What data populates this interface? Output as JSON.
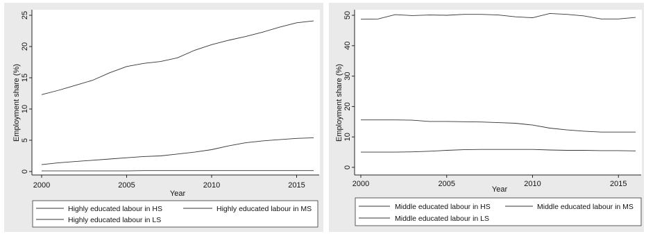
{
  "chart_data": [
    {
      "type": "line",
      "xlabel": "Year",
      "ylabel": "Employment share (%)",
      "xlim": [
        2000,
        2016
      ],
      "ylim": [
        0,
        26
      ],
      "xticks": [
        2000,
        2005,
        2010,
        2015
      ],
      "yticks": [
        0,
        5,
        10,
        15,
        20,
        25
      ],
      "grid": false,
      "legend_position": "bottom",
      "x": [
        2000,
        2001,
        2002,
        2003,
        2004,
        2005,
        2006,
        2007,
        2008,
        2009,
        2010,
        2011,
        2012,
        2013,
        2014,
        2015,
        2016
      ],
      "series": [
        {
          "name": "Highly educated labour in HS",
          "values": [
            12.3,
            13.0,
            13.8,
            14.6,
            15.8,
            16.8,
            17.3,
            17.6,
            18.2,
            19.4,
            20.3,
            21.0,
            21.6,
            22.3,
            23.1,
            23.8,
            24.1
          ]
        },
        {
          "name": "Highly educated labour  in MS",
          "values": [
            1.1,
            1.4,
            1.6,
            1.8,
            2.0,
            2.2,
            2.4,
            2.5,
            2.8,
            3.1,
            3.5,
            4.1,
            4.6,
            4.9,
            5.1,
            5.3,
            5.4
          ]
        },
        {
          "name": "Highly educated labour  in LS",
          "values": [
            0.1,
            0.1,
            0.1,
            0.1,
            0.1,
            0.1,
            0.15,
            0.15,
            0.15,
            0.15,
            0.15,
            0.15,
            0.15,
            0.15,
            0.15,
            0.15,
            0.15
          ]
        }
      ]
    },
    {
      "type": "line",
      "xlabel": "Year",
      "ylabel": "Employment share (%)",
      "xlim": [
        2000,
        2016
      ],
      "ylim": [
        0,
        52
      ],
      "xticks": [
        2000,
        2005,
        2010,
        2015
      ],
      "yticks": [
        0,
        10,
        20,
        30,
        40,
        50
      ],
      "grid": false,
      "legend_position": "bottom",
      "x": [
        2000,
        2001,
        2002,
        2003,
        2004,
        2005,
        2006,
        2007,
        2008,
        2009,
        2010,
        2011,
        2012,
        2013,
        2014,
        2015,
        2016
      ],
      "series": [
        {
          "name": "Middle educated labour in HS",
          "values": [
            15.6,
            15.6,
            15.6,
            15.5,
            15.1,
            15.1,
            15.0,
            14.9,
            14.7,
            14.5,
            13.9,
            12.9,
            12.3,
            11.9,
            11.6,
            11.6,
            11.6
          ]
        },
        {
          "name": "Middle educated labour in MS",
          "values": [
            48.7,
            48.8,
            50.2,
            49.9,
            50.1,
            50.0,
            50.3,
            50.3,
            50.1,
            49.5,
            49.2,
            50.6,
            50.3,
            49.8,
            48.8,
            48.8,
            49.3
          ]
        },
        {
          "name": "Middle educated labour in LS",
          "values": [
            5.0,
            5.0,
            5.0,
            5.1,
            5.3,
            5.6,
            5.8,
            5.9,
            5.9,
            5.9,
            5.9,
            5.7,
            5.6,
            5.6,
            5.5,
            5.5,
            5.4
          ]
        }
      ]
    }
  ]
}
